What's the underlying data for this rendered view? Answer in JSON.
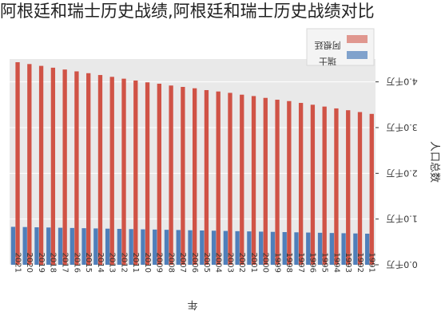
{
  "title": "阿根廷和瑞士历史战绩,阿根廷和瑞士历史战绩对比",
  "colors": {
    "argentina": "#cf4b3d",
    "switzerland": "#4f7fba",
    "plot_bg": "#e9e9e9",
    "grid": "#ffffff",
    "text": "#333333"
  },
  "chart_data": {
    "type": "bar",
    "orientation": "rotated-180",
    "xlabel": "年",
    "ylabel": "人口总数",
    "categories": [
      "1991",
      "1992",
      "1993",
      "1994",
      "1995",
      "1996",
      "1997",
      "1998",
      "1999",
      "2000",
      "2001",
      "2002",
      "2003",
      "2004",
      "2005",
      "2006",
      "2007",
      "2008",
      "2009",
      "2010",
      "2011",
      "2012",
      "2013",
      "2014",
      "2015",
      "2016",
      "2017",
      "2018",
      "2019",
      "2020",
      "2021"
    ],
    "series": [
      {
        "name": "阿根廷",
        "color": "#cf4b3d",
        "values": [
          33.0,
          33.4,
          33.8,
          34.2,
          34.6,
          35.0,
          35.4,
          35.8,
          36.1,
          36.5,
          36.9,
          37.2,
          37.6,
          37.9,
          38.2,
          38.6,
          38.9,
          39.2,
          39.6,
          39.9,
          40.3,
          40.7,
          41.1,
          41.5,
          41.9,
          42.3,
          42.7,
          43.1,
          43.5,
          43.9,
          44.3
        ]
      },
      {
        "name": "瑞士",
        "color": "#4f7fba",
        "values": [
          6.8,
          6.85,
          6.9,
          6.95,
          7.0,
          7.05,
          7.1,
          7.15,
          7.2,
          7.25,
          7.3,
          7.35,
          7.4,
          7.45,
          7.5,
          7.55,
          7.6,
          7.65,
          7.7,
          7.75,
          7.8,
          7.85,
          7.9,
          7.95,
          8.0,
          8.05,
          8.1,
          8.15,
          8.2,
          8.25,
          8.3
        ]
      }
    ],
    "yticks": [
      {
        "value": 0,
        "label": "0.0千万"
      },
      {
        "value": 10,
        "label": "1.0千万"
      },
      {
        "value": 20,
        "label": "2.0千万"
      },
      {
        "value": 30,
        "label": "3.0千万"
      },
      {
        "value": 40,
        "label": "4.0千万"
      }
    ],
    "ylim": [
      0,
      45
    ],
    "grid": true,
    "legend_position": "top-right"
  }
}
